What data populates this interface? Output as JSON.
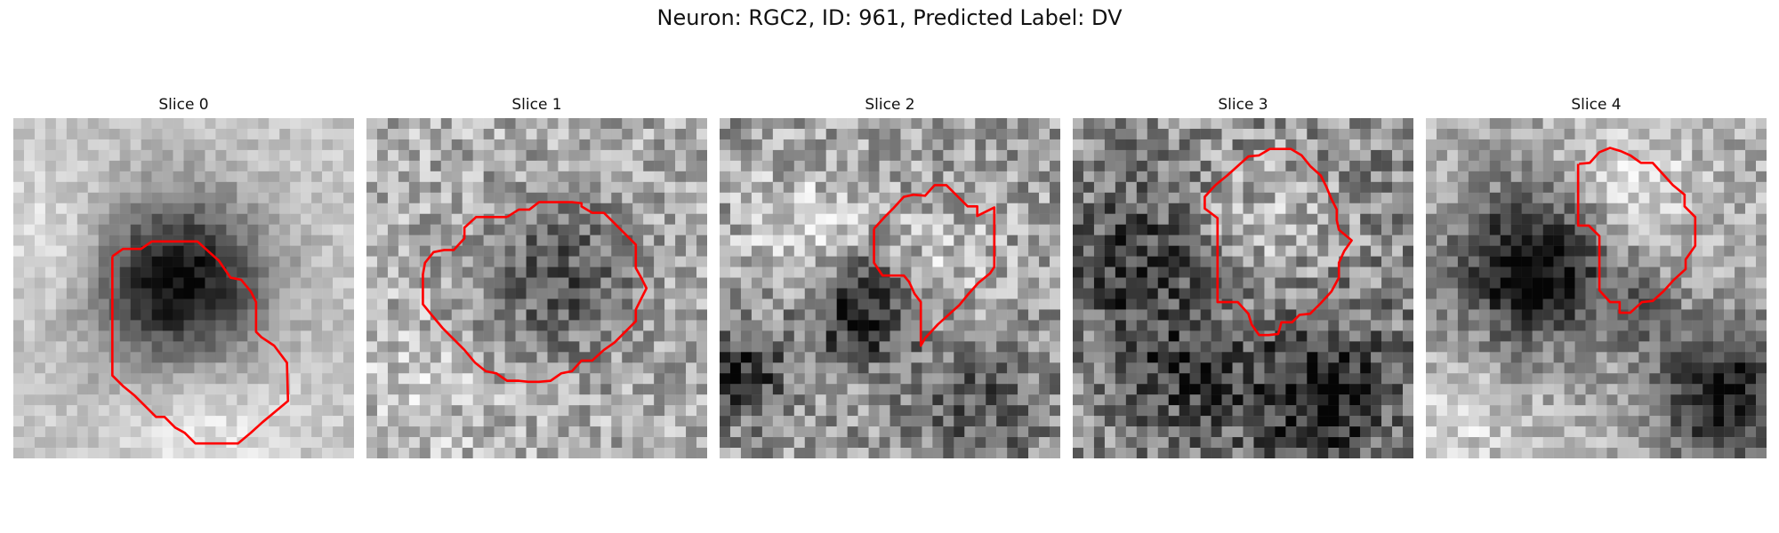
{
  "figure": {
    "title": "Neuron: RGC2, ID: 961, Predicted Label: DV"
  },
  "panels": [
    {
      "title": "Slice 0"
    },
    {
      "title": "Slice 1"
    },
    {
      "title": "Slice 2"
    },
    {
      "title": "Slice 3"
    },
    {
      "title": "Slice 4"
    }
  ],
  "colors": {
    "contour": "#ff0000",
    "background": "#ffffff"
  }
}
